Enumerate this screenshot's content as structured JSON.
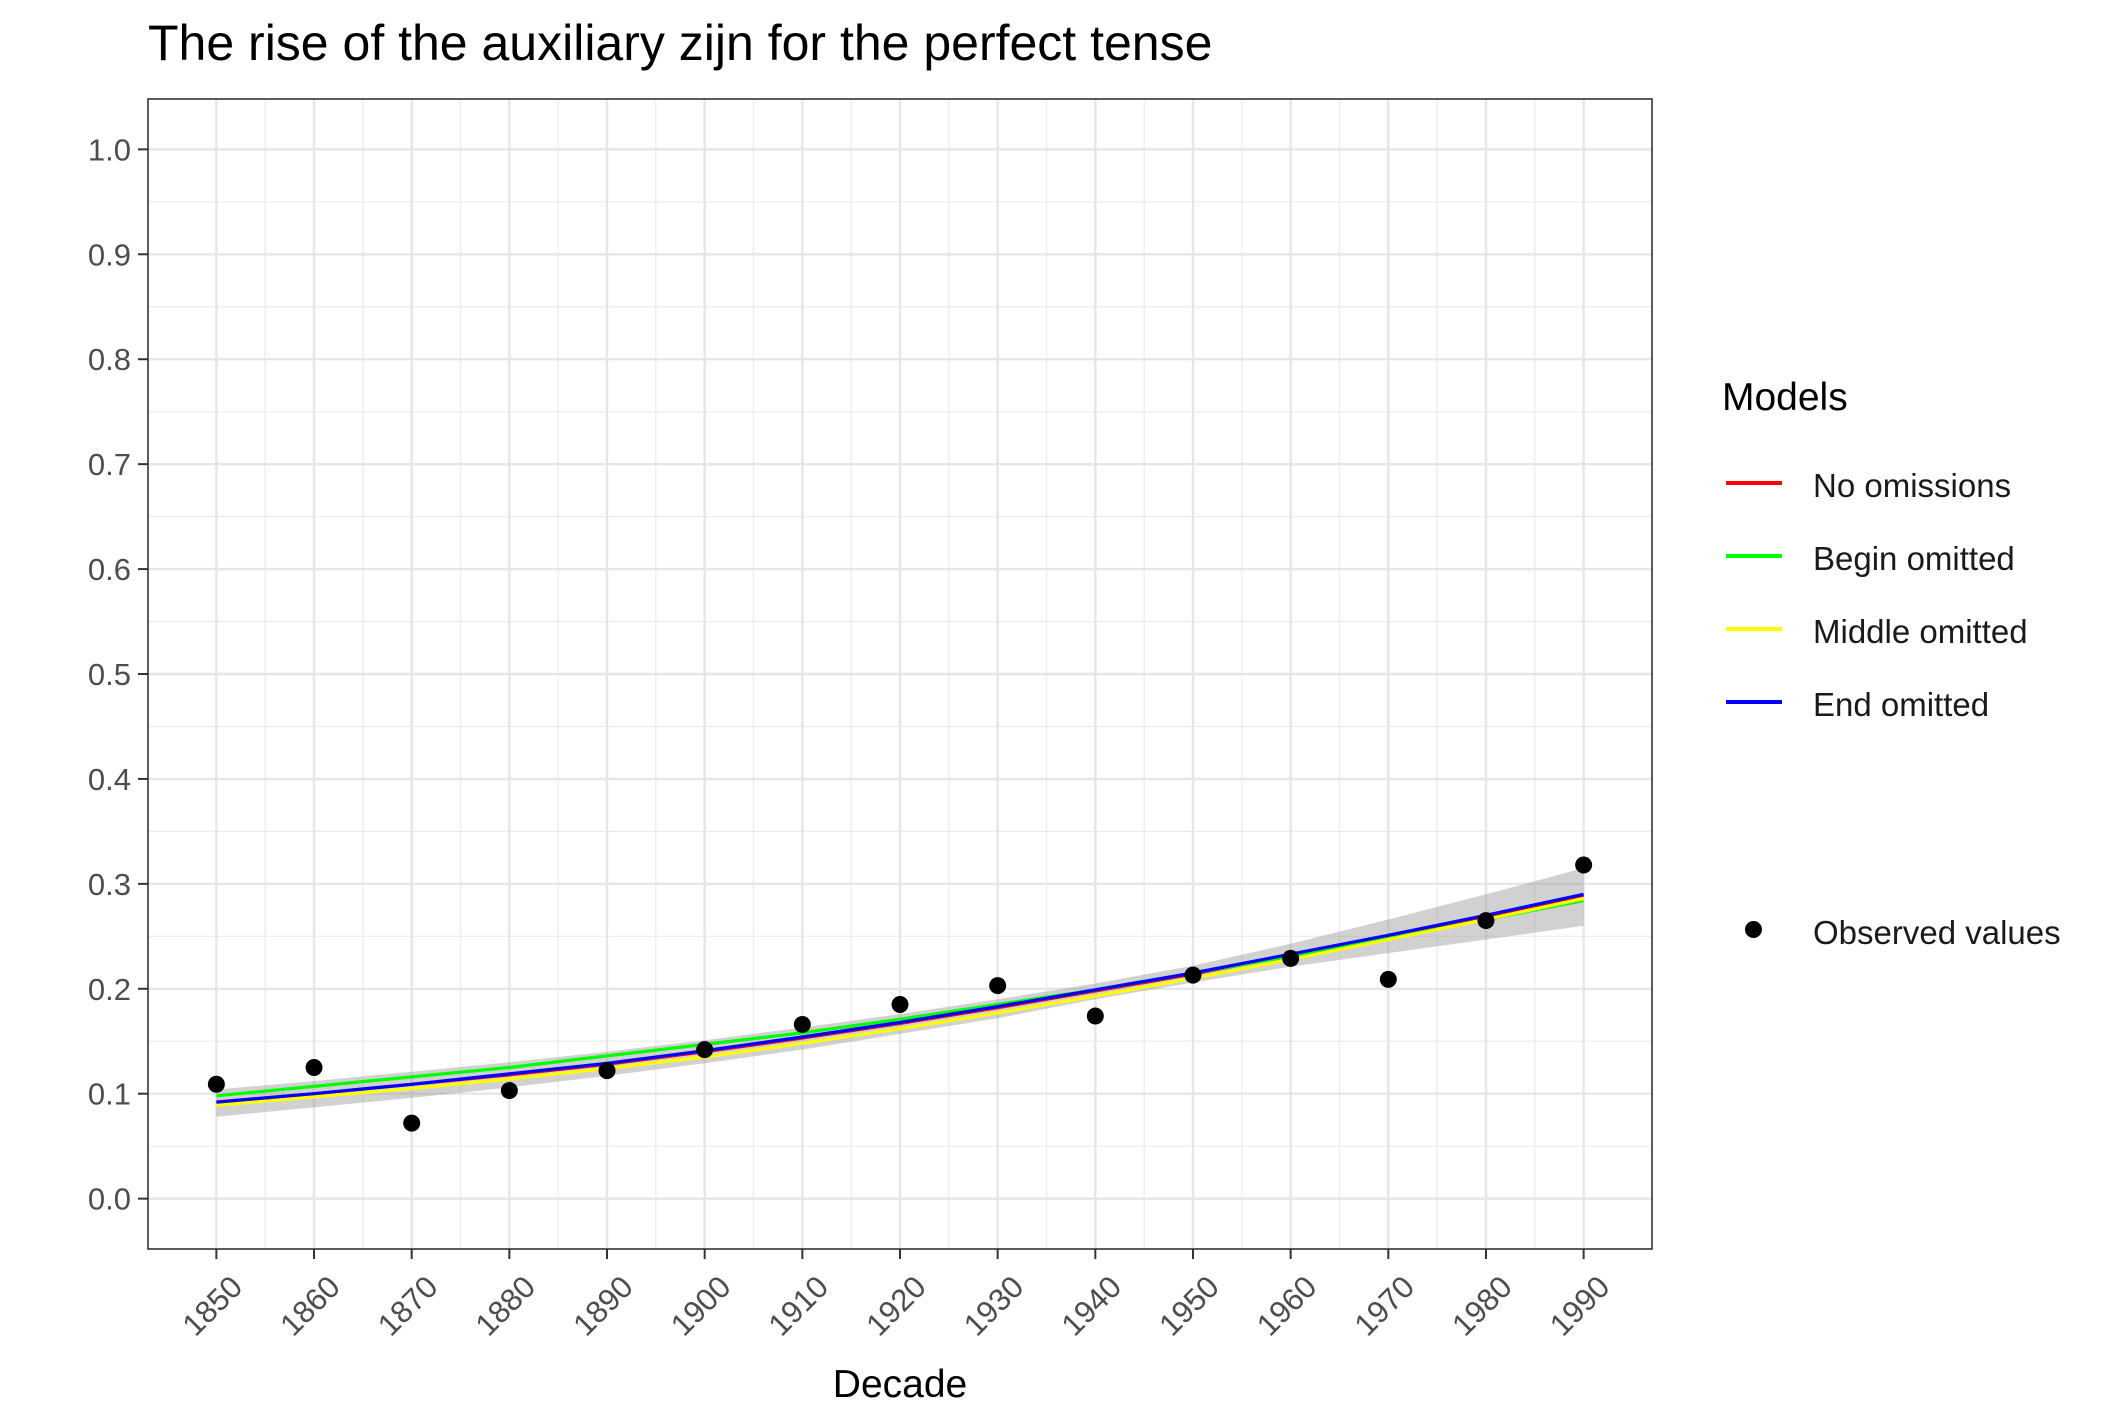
{
  "chart_data": {
    "type": "line",
    "title": "The rise of the auxiliary zijn for the perfect tense",
    "xlabel": "Decade",
    "ylabel": "",
    "x": [
      1850,
      1860,
      1870,
      1880,
      1890,
      1900,
      1910,
      1920,
      1930,
      1940,
      1950,
      1960,
      1970,
      1980,
      1990
    ],
    "xlim": [
      1843,
      1997
    ],
    "ylim": [
      -0.048,
      1.048
    ],
    "x_ticks": [
      "1850",
      "1860",
      "1870",
      "1880",
      "1890",
      "1900",
      "1910",
      "1920",
      "1930",
      "1940",
      "1950",
      "1960",
      "1970",
      "1980",
      "1990"
    ],
    "y_ticks": [
      "0.0",
      "0.1",
      "0.2",
      "0.3",
      "0.4",
      "0.5",
      "0.6",
      "0.7",
      "0.8",
      "0.9",
      "1.0"
    ],
    "grid": true,
    "legend_title": "Models",
    "legend_position": "right",
    "series": [
      {
        "name": "No omissions",
        "color": "#ff0000",
        "values": [
          0.092,
          0.1,
          0.109,
          0.118,
          0.128,
          0.14,
          0.153,
          0.167,
          0.182,
          0.198,
          0.214,
          0.232,
          0.25,
          0.269,
          0.289
        ]
      },
      {
        "name": "Begin omitted",
        "color": "#00ff00",
        "values": [
          0.098,
          0.107,
          0.116,
          0.125,
          0.136,
          0.147,
          0.158,
          0.171,
          0.185,
          0.199,
          0.215,
          0.231,
          0.248,
          0.266,
          0.284
        ]
      },
      {
        "name": "Middle omitted",
        "color": "#ffff00",
        "values": [
          0.089,
          0.097,
          0.105,
          0.114,
          0.124,
          0.135,
          0.148,
          0.162,
          0.177,
          0.193,
          0.21,
          0.228,
          0.247,
          0.266,
          0.286
        ]
      },
      {
        "name": "End omitted",
        "color": "#0000ff",
        "values": [
          0.092,
          0.1,
          0.109,
          0.119,
          0.129,
          0.141,
          0.154,
          0.168,
          0.183,
          0.199,
          0.215,
          0.233,
          0.251,
          0.27,
          0.29
        ]
      }
    ],
    "confidence_band": {
      "lower": [
        0.078,
        0.087,
        0.096,
        0.106,
        0.117,
        0.129,
        0.142,
        0.157,
        0.172,
        0.19,
        0.206,
        0.221,
        0.234,
        0.247,
        0.26
      ],
      "upper": [
        0.104,
        0.112,
        0.121,
        0.13,
        0.14,
        0.151,
        0.163,
        0.176,
        0.19,
        0.205,
        0.222,
        0.243,
        0.266,
        0.29,
        0.315
      ]
    },
    "observed": {
      "name": "Observed values",
      "x": [
        1850,
        1860,
        1870,
        1880,
        1890,
        1900,
        1910,
        1920,
        1930,
        1940,
        1950,
        1960,
        1970,
        1980,
        1990
      ],
      "y": [
        0.109,
        0.125,
        0.072,
        0.103,
        0.122,
        0.142,
        0.166,
        0.185,
        0.203,
        0.174,
        0.213,
        0.229,
        0.209,
        0.265,
        0.318
      ]
    }
  }
}
